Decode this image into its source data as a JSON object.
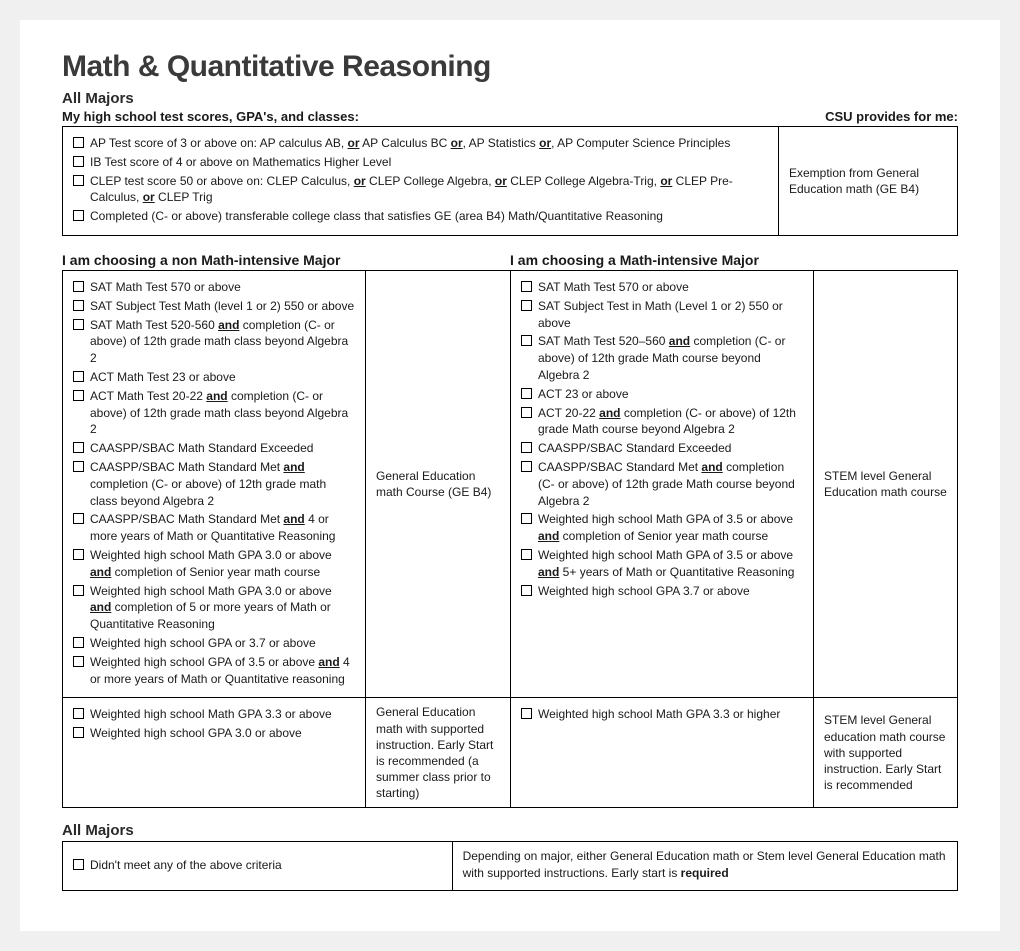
{
  "title": "Math & Quantitative Reasoning",
  "all_majors_label": "All Majors",
  "my_scores_label": "My high school test scores, GPA's, and classes:",
  "csu_provides_label": "CSU provides for me:",
  "top_box": {
    "items": [
      "AP Test score of 3 or above on: AP calculus AB, <span class='u'>or</span> AP Calculus BC <span class='u'>or</span>, AP Statistics <span class='u'>or</span>, AP Computer Science Principles",
      "IB Test score of 4 or above on Mathematics Higher Level",
      "CLEP test score 50 or above on: CLEP Calculus, <span class='u'>or</span> CLEP College Algebra, <span class='u'>or</span> CLEP College Algebra-Trig, <span class='u'>or</span> CLEP Pre-Calculus, <span class='u'>or</span> CLEP Trig",
      "Completed (C- or above) transferable college class that satisfies GE (area B4) Math/Quantitative Reasoning"
    ],
    "provides": "Exemption from General Education math (GE B4)"
  },
  "non_intensive_label": "I am choosing a non Math-intensive Major",
  "intensive_label": "I am choosing a Math-intensive Major",
  "non_intensive_r1": {
    "items": [
      "SAT Math Test 570 or above",
      "SAT Subject Test Math (level 1 or 2) 550 or above",
      "SAT Math Test 520-560 <span class='u b'>and</span> completion (C- or above) of 12th grade math class beyond Algebra 2",
      "ACT Math Test 23 or above",
      "ACT Math Test 20-22 <span class='u b'>and</span> completion (C- or above) of 12th grade math class beyond Algebra 2",
      "CAASPP/SBAC Math Standard Exceeded",
      "CAASPP/SBAC Math Standard Met <span class='u b'>and</span> completion (C- or above) of 12th grade math class beyond Algebra 2",
      "CAASPP/SBAC Math Standard Met <span class='u b'>and</span> 4 or more years of Math or Quantitative Reasoning",
      "Weighted high school Math GPA 3.0 or above <span class='u b'>and</span> completion of Senior year math course",
      "Weighted high school Math GPA 3.0 or above <span class='u b'>and</span> completion of 5 or more years of Math or Quantitative Reasoning",
      "Weighted high school GPA or 3.7 or above",
      "Weighted high school GPA of 3.5 or above <span class='u b'>and</span> 4 or more years of Math or Quantitative reasoning"
    ],
    "provides": "General Education math Course (GE B4)"
  },
  "intensive_r1": {
    "items": [
      "SAT Math Test 570 or above",
      "SAT Subject Test in Math (Level 1 or 2) 550 or above",
      "SAT Math Test 520–560 <span class='u b'>and</span> completion (C- or above) of 12th grade Math course beyond Algebra 2",
      "ACT 23 or above",
      "ACT 20-22 <span class='u b'>and</span> completion (C- or above) of 12th grade Math course beyond Algebra 2",
      "CAASPP/SBAC Standard Exceeded",
      "CAASPP/SBAC Standard Met <span class='u b'>and</span> completion (C- or above) of 12th grade Math course beyond Algebra 2",
      "Weighted high school Math GPA of 3.5 or above <span class='u b'>and</span> completion of Senior year math course",
      "Weighted high school Math GPA of 3.5 or above <span class='u b'>and</span> 5+ years of Math or Quantitative Reasoning",
      "Weighted high school GPA 3.7 or above"
    ],
    "provides": "STEM level General Education math course"
  },
  "non_intensive_r2": {
    "items": [
      "Weighted high school Math GPA 3.3 or above",
      "Weighted high school GPA 3.0 or above"
    ],
    "provides": "General Education math with supported instruction. Early Start is recommended (a summer class prior to starting)"
  },
  "intensive_r2": {
    "items": [
      "Weighted high school Math GPA 3.3 or higher"
    ],
    "provides": "STEM level General education math course with supported instruction. Early Start is recommended"
  },
  "bottom_all_majors": "All Majors",
  "bottom": {
    "item": "Didn't meet any of the above criteria",
    "provides": "Depending on major, either General Education math or Stem level General Education math with supported instructions. Early start is <span class='b'>required</span>"
  }
}
